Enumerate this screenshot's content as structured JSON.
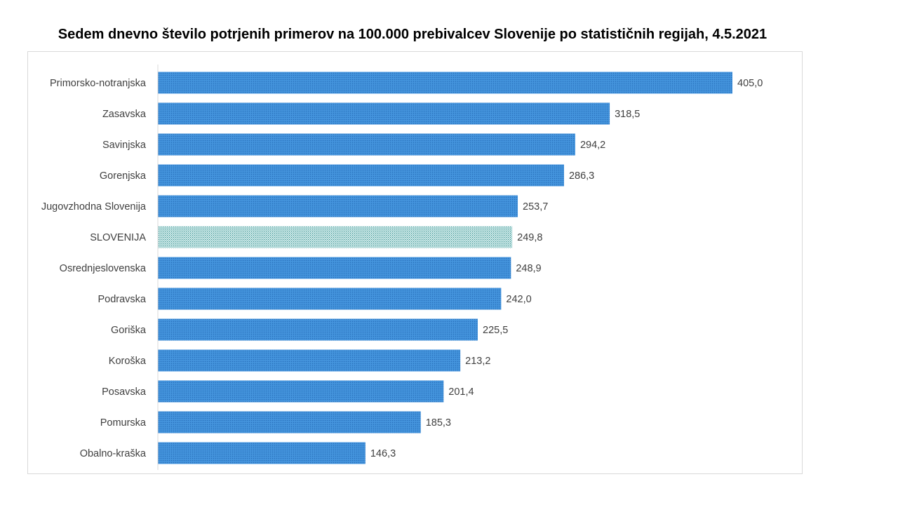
{
  "chart_data": {
    "type": "bar",
    "orientation": "horizontal",
    "title": "Sedem dnevno število potrjenih primerov na 100.000  prebivalcev Slovenije po statističnih regijah, 4.5.2021",
    "categories": [
      "Primorsko-notranjska",
      "Zasavska",
      "Savinjska",
      "Gorenjska",
      "Jugovzhodna Slovenija",
      "SLOVENIJA",
      "Osrednjeslovenska",
      "Podravska",
      "Goriška",
      "Koroška",
      "Posavska",
      "Pomurska",
      "Obalno-kraška"
    ],
    "values": [
      405.0,
      318.5,
      294.2,
      286.3,
      253.7,
      249.8,
      248.9,
      242.0,
      225.5,
      213.2,
      201.4,
      185.3,
      146.3
    ],
    "value_labels": [
      "405,0",
      "318,5",
      "294,2",
      "286,3",
      "253,7",
      "249,8",
      "248,9",
      "242,0",
      "225,5",
      "213,2",
      "201,4",
      "185,3",
      "146,3"
    ],
    "highlight_category": "SLOVENIJA",
    "xlim": [
      0,
      450
    ],
    "grid": false,
    "legend": "none",
    "colors": {
      "bar": "#3e8ed8",
      "bar_pattern": "#2a6fb8",
      "highlight": "#e2f3f2",
      "highlight_pattern": "#2a8a8a",
      "axis": "#d9d9d9",
      "label": "#404040"
    }
  }
}
